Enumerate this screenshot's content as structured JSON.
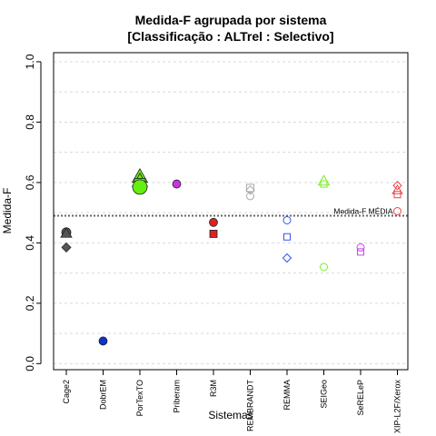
{
  "chart_data": {
    "type": "scatter",
    "title": "Medida-F agrupada por sistema",
    "subtitle": "[Classificação : ALTrel : Selectivo]",
    "xlabel": "Sistemas",
    "ylabel": "Medida-F",
    "ylim": [
      -0.02,
      1.03
    ],
    "yticks": [
      "0.0",
      "0.2",
      "0.4",
      "0.6",
      "0.8",
      "1.0"
    ],
    "grid": true,
    "categories": [
      "Cage2",
      "DobrEM",
      "PorTexTO",
      "Priberam",
      "R3M",
      "REMBRANDT",
      "REMMA",
      "SEIGeo",
      "SeRELeP",
      "XIP-L2F/Xerox"
    ],
    "reference_line": {
      "label": "Medida-F MÉDIA",
      "value": 0.49
    },
    "points": [
      {
        "category": "Cage2",
        "value": 0.435,
        "shape": "circle",
        "filled": true,
        "color": "#555555",
        "size": 5
      },
      {
        "category": "Cage2",
        "value": 0.432,
        "shape": "triangle",
        "filled": true,
        "color": "#555555",
        "size": 5
      },
      {
        "category": "Cage2",
        "value": 0.385,
        "shape": "diamond",
        "filled": true,
        "color": "#555555",
        "size": 5
      },
      {
        "category": "DobrEM",
        "value": 0.075,
        "shape": "circle",
        "filled": true,
        "color": "#1133cc",
        "size": 4.5
      },
      {
        "category": "PorTexTO",
        "value": 0.62,
        "shape": "triangle",
        "filled": true,
        "color": "#66ee11",
        "size": 7
      },
      {
        "category": "PorTexTO",
        "value": 0.605,
        "shape": "triangle",
        "filled": true,
        "color": "#66ee11",
        "size": 7
      },
      {
        "category": "PorTexTO",
        "value": 0.595,
        "shape": "square",
        "filled": true,
        "color": "#66ee11",
        "size": 6
      },
      {
        "category": "PorTexTO",
        "value": 0.585,
        "shape": "circle",
        "filled": true,
        "color": "#66ee11",
        "size": 8
      },
      {
        "category": "Priberam",
        "value": 0.595,
        "shape": "circle",
        "filled": true,
        "color": "#cc33dd",
        "size": 4.5
      },
      {
        "category": "R3M",
        "value": 0.468,
        "shape": "circle",
        "filled": true,
        "color": "#dd2222",
        "size": 4.5
      },
      {
        "category": "R3M",
        "value": 0.43,
        "shape": "square",
        "filled": true,
        "color": "#dd2222",
        "size": 4
      },
      {
        "category": "REMBRANDT",
        "value": 0.582,
        "shape": "square",
        "filled": false,
        "color": "#aaaaaa",
        "size": 4
      },
      {
        "category": "REMBRANDT",
        "value": 0.575,
        "shape": "diamond",
        "filled": false,
        "color": "#aaaaaa",
        "size": 4.5
      },
      {
        "category": "REMBRANDT",
        "value": 0.555,
        "shape": "circle",
        "filled": false,
        "color": "#aaaaaa",
        "size": 4
      },
      {
        "category": "REMMA",
        "value": 0.475,
        "shape": "circle",
        "filled": false,
        "color": "#3355ee",
        "size": 4
      },
      {
        "category": "REMMA",
        "value": 0.42,
        "shape": "square",
        "filled": false,
        "color": "#3355ee",
        "size": 3.5
      },
      {
        "category": "REMMA",
        "value": 0.35,
        "shape": "diamond",
        "filled": false,
        "color": "#3355ee",
        "size": 4.5
      },
      {
        "category": "SEIGeo",
        "value": 0.605,
        "shape": "triangle",
        "filled": false,
        "color": "#77ee22",
        "size": 5
      },
      {
        "category": "SEIGeo",
        "value": 0.595,
        "shape": "square",
        "filled": false,
        "color": "#77ee22",
        "size": 3.5
      },
      {
        "category": "SEIGeo",
        "value": 0.32,
        "shape": "circle",
        "filled": false,
        "color": "#77ee22",
        "size": 4
      },
      {
        "category": "SeRELeP",
        "value": 0.385,
        "shape": "circle",
        "filled": false,
        "color": "#cc44ee",
        "size": 4
      },
      {
        "category": "SeRELeP",
        "value": 0.37,
        "shape": "square",
        "filled": false,
        "color": "#cc44ee",
        "size": 3.5
      },
      {
        "category": "XIP-L2F/Xerox",
        "value": 0.59,
        "shape": "diamond",
        "filled": false,
        "color": "#ee4444",
        "size": 4.5
      },
      {
        "category": "XIP-L2F/Xerox",
        "value": 0.575,
        "shape": "triangle",
        "filled": false,
        "color": "#ee4444",
        "size": 4.5
      },
      {
        "category": "XIP-L2F/Xerox",
        "value": 0.56,
        "shape": "square",
        "filled": false,
        "color": "#ee4444",
        "size": 3.5
      },
      {
        "category": "XIP-L2F/Xerox",
        "value": 0.505,
        "shape": "circle",
        "filled": false,
        "color": "#ee4444",
        "size": 4
      }
    ]
  }
}
